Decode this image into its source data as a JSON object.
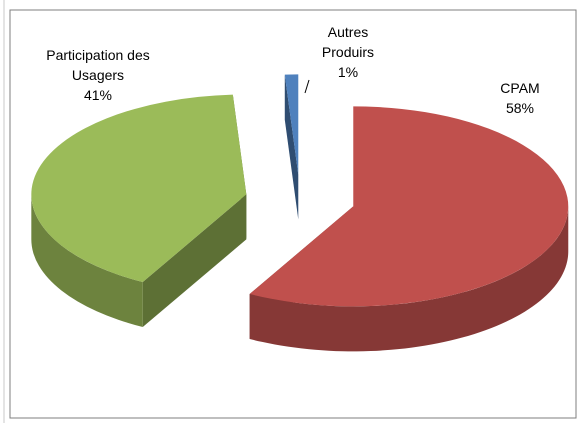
{
  "chart_data": {
    "type": "pie3d",
    "categories": [
      "CPAM",
      "Participation des Usagers",
      "Autres Produirs"
    ],
    "values": [
      58,
      41,
      1
    ],
    "value_labels": [
      "58%",
      "41%",
      "1%"
    ],
    "colors": [
      "#c0504d",
      "#9bbb59",
      "#4f81bd"
    ]
  }
}
